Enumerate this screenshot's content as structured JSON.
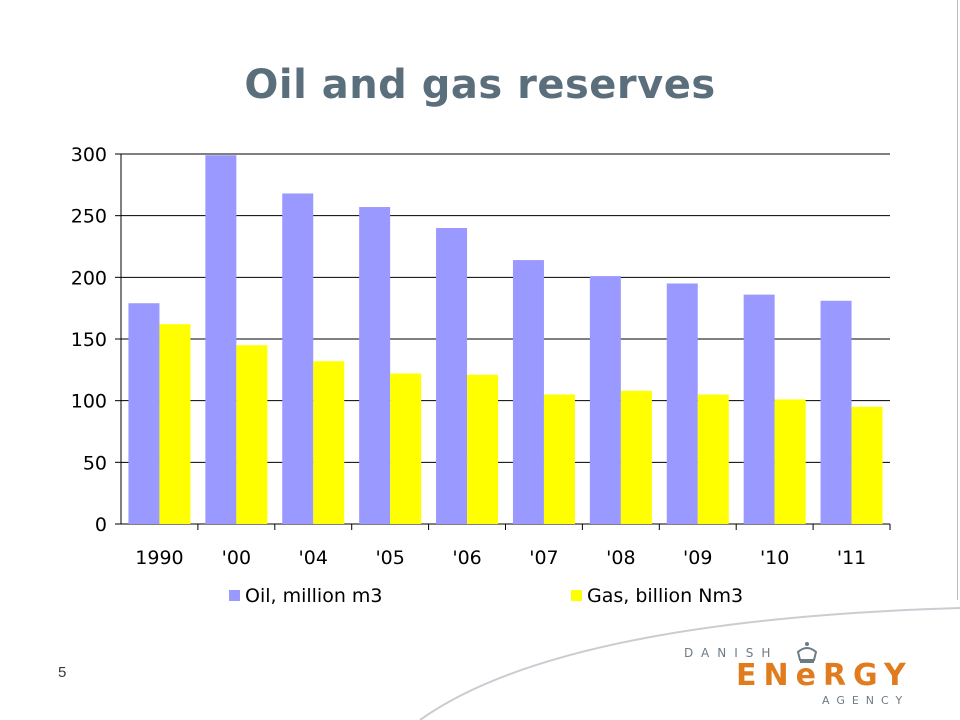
{
  "slide": {
    "title": "Oil and gas reserves",
    "page_number": "5"
  },
  "logo": {
    "top": "DANISH",
    "main": "ENeRGY",
    "bottom": "AGENCY",
    "accent_color": "#e07c1e",
    "text_color": "#6d7b85",
    "icon": "crown-icon"
  },
  "colors": {
    "title": "#5b6e7c",
    "oil": "#9999ff",
    "gas": "#ffff00"
  },
  "chart_data": {
    "type": "bar",
    "title": "",
    "xlabel": "",
    "ylabel": "",
    "categories": [
      "1990",
      "'00",
      "'04",
      "'05",
      "'06",
      "'07",
      "'08",
      "'09",
      "'10",
      "'11"
    ],
    "series": [
      {
        "name": "Oil, million m3",
        "color": "#9999ff",
        "values": [
          179,
          299,
          268,
          257,
          240,
          214,
          201,
          195,
          186,
          181
        ]
      },
      {
        "name": "Gas, billion Nm3",
        "color": "#ffff00",
        "values": [
          162,
          145,
          132,
          122,
          121,
          105,
          108,
          105,
          101,
          95
        ]
      }
    ],
    "ylim": [
      0,
      300
    ],
    "yticks": [
      0,
      50,
      100,
      150,
      200,
      250,
      300
    ],
    "grid": true,
    "legend": "bottom"
  }
}
